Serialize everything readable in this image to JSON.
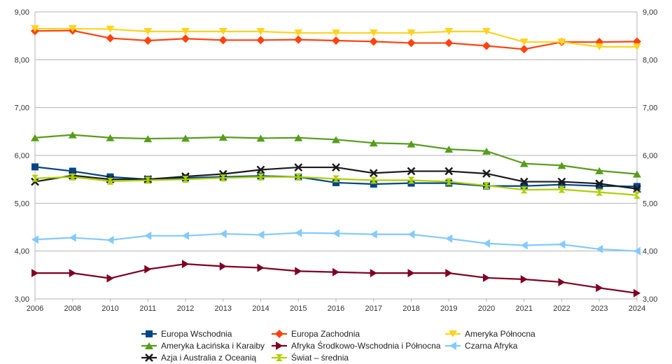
{
  "chart_data": {
    "type": "line",
    "title": "",
    "xlabel": "",
    "ylabel": "",
    "ylim": [
      3.0,
      9.0
    ],
    "yticks": [
      "3,00",
      "4,00",
      "5,00",
      "6,00",
      "7,00",
      "8,00",
      "9,00"
    ],
    "ytick_values": [
      3,
      4,
      5,
      6,
      7,
      8,
      9
    ],
    "grid": "horizontal",
    "legend_position": "bottom",
    "categories": [
      "2006",
      "2008",
      "2010",
      "2011",
      "2012",
      "2013",
      "2014",
      "2015",
      "2016",
      "2017",
      "2018",
      "2019",
      "2020",
      "2021",
      "2022",
      "2023",
      "2024"
    ],
    "series": [
      {
        "name": "Europa Wschodnia",
        "color": "#004586",
        "marker": "square",
        "values": [
          5.76,
          5.67,
          5.55,
          5.5,
          5.53,
          5.55,
          5.57,
          5.55,
          5.43,
          5.4,
          5.42,
          5.42,
          5.36,
          5.36,
          5.39,
          5.36,
          5.35
        ]
      },
      {
        "name": "Europa Zachodnia",
        "color": "#ff420e",
        "marker": "diamond",
        "values": [
          8.6,
          8.61,
          8.45,
          8.4,
          8.44,
          8.41,
          8.41,
          8.42,
          8.4,
          8.38,
          8.35,
          8.35,
          8.29,
          8.22,
          8.37,
          8.37,
          8.38
        ]
      },
      {
        "name": "Ameryka Północna",
        "color": "#ffd320",
        "marker": "triangle-down",
        "values": [
          8.65,
          8.65,
          8.64,
          8.59,
          8.59,
          8.59,
          8.59,
          8.56,
          8.56,
          8.56,
          8.56,
          8.59,
          8.59,
          8.37,
          8.37,
          8.27,
          8.27
        ]
      },
      {
        "name": "Ameryka Łacińska i Karaiby",
        "color": "#579d1c",
        "marker": "triangle-up",
        "values": [
          6.37,
          6.43,
          6.37,
          6.35,
          6.36,
          6.38,
          6.36,
          6.37,
          6.33,
          6.26,
          6.24,
          6.13,
          6.09,
          5.83,
          5.79,
          5.68,
          5.61
        ]
      },
      {
        "name": "Afryka Środkowo-Wschodnia i Północna",
        "color": "#7e0021",
        "marker": "triangle-right",
        "values": [
          3.54,
          3.54,
          3.43,
          3.62,
          3.73,
          3.68,
          3.65,
          3.58,
          3.56,
          3.54,
          3.54,
          3.54,
          3.44,
          3.41,
          3.35,
          3.23,
          3.12
        ]
      },
      {
        "name": "Czarna Afryka",
        "color": "#83caff",
        "marker": "triangle-left",
        "values": [
          4.24,
          4.28,
          4.23,
          4.32,
          4.32,
          4.36,
          4.34,
          4.38,
          4.37,
          4.35,
          4.35,
          4.26,
          4.16,
          4.12,
          4.14,
          4.04,
          4.0
        ]
      },
      {
        "name": "Azja i Australia z Oceanią",
        "color": "#1a1a1a",
        "marker": "x",
        "values": [
          5.45,
          5.58,
          5.5,
          5.5,
          5.56,
          5.61,
          5.7,
          5.75,
          5.75,
          5.63,
          5.67,
          5.67,
          5.62,
          5.45,
          5.45,
          5.41,
          5.3
        ]
      },
      {
        "name": "Świat – średnia",
        "color": "#aecf00",
        "marker": "hourglass",
        "values": [
          5.52,
          5.55,
          5.46,
          5.48,
          5.5,
          5.53,
          5.55,
          5.55,
          5.51,
          5.48,
          5.48,
          5.45,
          5.37,
          5.28,
          5.29,
          5.23,
          5.17
        ]
      }
    ]
  }
}
